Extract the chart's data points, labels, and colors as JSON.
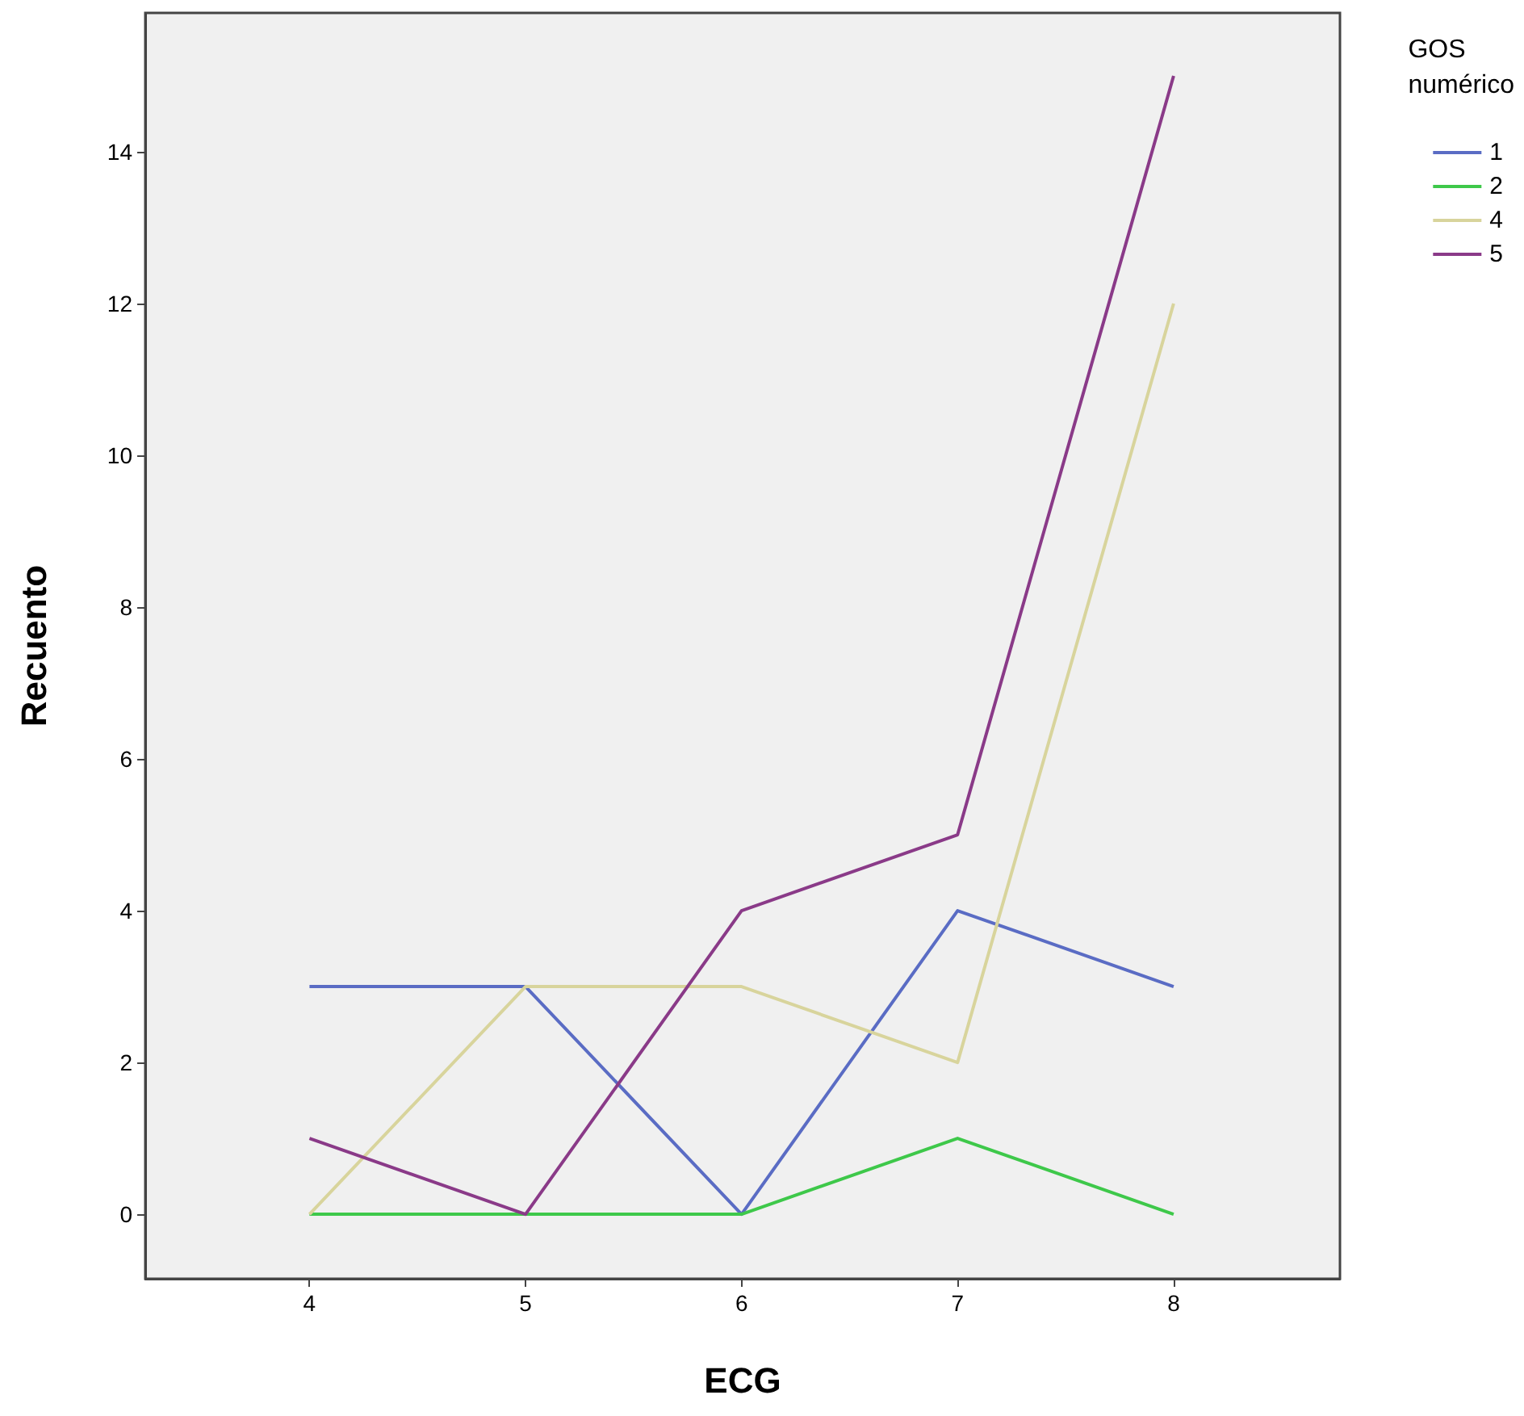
{
  "chart_data": {
    "type": "line",
    "xlabel": "ECG",
    "ylabel": "Recuento",
    "legend_title": "GOS numérico",
    "x": [
      4,
      5,
      6,
      7,
      8
    ],
    "xlim": [
      3.24,
      8.77
    ],
    "xticks": [
      4,
      5,
      6,
      7,
      8
    ],
    "ylim": [
      -0.85,
      15.83
    ],
    "yticks": [
      0,
      2,
      4,
      6,
      8,
      10,
      12,
      14
    ],
    "series": [
      {
        "name": "1",
        "color": "#5a6cc4",
        "values": [
          3,
          3,
          0,
          4,
          3
        ]
      },
      {
        "name": "2",
        "color": "#3ec84a",
        "values": [
          0,
          0,
          0,
          1,
          0
        ]
      },
      {
        "name": "4",
        "color": "#d8d49c",
        "values": [
          0,
          3,
          3,
          2,
          12
        ]
      },
      {
        "name": "5",
        "color": "#8a3a88",
        "values": [
          1,
          0,
          4,
          5,
          15
        ]
      }
    ],
    "grid": false,
    "legend": "top right",
    "marker": "none",
    "line_style": "solid"
  }
}
